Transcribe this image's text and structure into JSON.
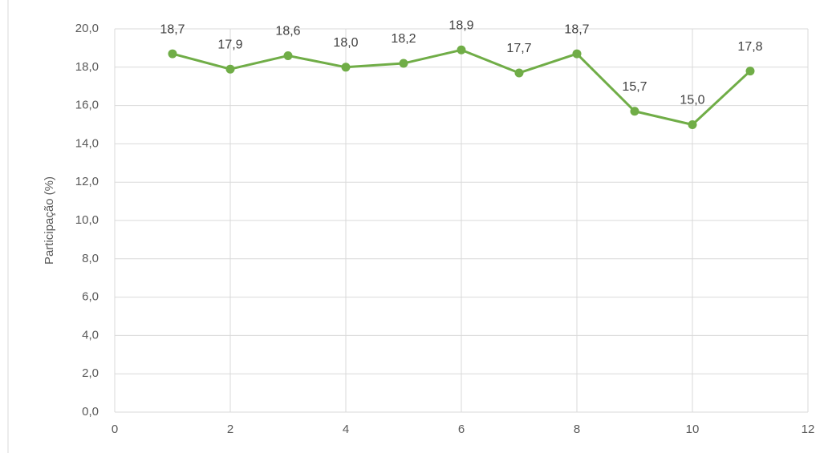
{
  "chart_data": {
    "type": "line",
    "y_label": "Participação (%)",
    "x": [
      1,
      2,
      3,
      4,
      5,
      6,
      7,
      8,
      9,
      10,
      11
    ],
    "series": [
      {
        "name": "Participação",
        "color": "#70ad47",
        "values": [
          18.7,
          17.9,
          18.6,
          18.0,
          18.2,
          18.9,
          17.7,
          18.7,
          15.7,
          15.0,
          17.8
        ],
        "value_labels": [
          "18,7",
          "17,9",
          "18,6",
          "18,0",
          "18,2",
          "18,9",
          "17,7",
          "18,7",
          "15,7",
          "15,0",
          "17,8"
        ]
      }
    ],
    "xlim": [
      0,
      12
    ],
    "xticks": [
      0,
      2,
      4,
      6,
      8,
      10,
      12
    ],
    "ylim": [
      0,
      20
    ],
    "yticks": [
      {
        "value": 0,
        "label": "0,0"
      },
      {
        "value": 2,
        "label": "2,0"
      },
      {
        "value": 4,
        "label": "4,0"
      },
      {
        "value": 6,
        "label": "6,0"
      },
      {
        "value": 8,
        "label": "8,0"
      },
      {
        "value": 10,
        "label": "10,0"
      },
      {
        "value": 12,
        "label": "12,0"
      },
      {
        "value": 14,
        "label": "14,0"
      },
      {
        "value": 16,
        "label": "16,0"
      },
      {
        "value": 18,
        "label": "18,0"
      },
      {
        "value": 20,
        "label": "20,0"
      }
    ],
    "grid": true
  }
}
